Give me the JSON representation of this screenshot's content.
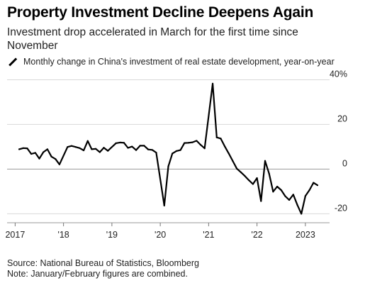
{
  "title": "Property Investment Decline Deepens Again",
  "subtitle": "Investment drop accelerated in March for the first time since November",
  "legend_label": "Monthly change in China's investment of real estate development, year-on-year",
  "footer": {
    "source": "Source: National Bureau of Statistics, Bloomberg",
    "note": "Note: January/February figures are combined."
  },
  "chart_data": {
    "type": "line",
    "title": "Property Investment Decline Deepens Again",
    "subtitle": "Investment drop accelerated in March for the first time since November",
    "series": [
      {
        "name": "Monthly change in China's investment of real estate development, year-on-year",
        "color": "#000000",
        "points": [
          {
            "x": "2017-02",
            "y": 8.9
          },
          {
            "x": "2017-03",
            "y": 9.4
          },
          {
            "x": "2017-04",
            "y": 9.3
          },
          {
            "x": "2017-05",
            "y": 6.8
          },
          {
            "x": "2017-06",
            "y": 7.3
          },
          {
            "x": "2017-07",
            "y": 4.7
          },
          {
            "x": "2017-08",
            "y": 7.6
          },
          {
            "x": "2017-09",
            "y": 8.9
          },
          {
            "x": "2017-10",
            "y": 5.6
          },
          {
            "x": "2017-11",
            "y": 4.5
          },
          {
            "x": "2017-12",
            "y": 2.1
          },
          {
            "x": "2018-02",
            "y": 9.9
          },
          {
            "x": "2018-03",
            "y": 10.4
          },
          {
            "x": "2018-04",
            "y": 9.9
          },
          {
            "x": "2018-05",
            "y": 9.4
          },
          {
            "x": "2018-06",
            "y": 8.4
          },
          {
            "x": "2018-07",
            "y": 12.6
          },
          {
            "x": "2018-08",
            "y": 8.9
          },
          {
            "x": "2018-09",
            "y": 9.1
          },
          {
            "x": "2018-10",
            "y": 7.6
          },
          {
            "x": "2018-11",
            "y": 9.6
          },
          {
            "x": "2018-12",
            "y": 8.2
          },
          {
            "x": "2019-02",
            "y": 11.6
          },
          {
            "x": "2019-03",
            "y": 11.9
          },
          {
            "x": "2019-04",
            "y": 11.8
          },
          {
            "x": "2019-05",
            "y": 9.5
          },
          {
            "x": "2019-06",
            "y": 10.1
          },
          {
            "x": "2019-07",
            "y": 8.5
          },
          {
            "x": "2019-08",
            "y": 10.5
          },
          {
            "x": "2019-09",
            "y": 10.5
          },
          {
            "x": "2019-10",
            "y": 8.8
          },
          {
            "x": "2019-11",
            "y": 8.6
          },
          {
            "x": "2019-12",
            "y": 7.4
          },
          {
            "x": "2020-02",
            "y": -16.3
          },
          {
            "x": "2020-03",
            "y": 1.2
          },
          {
            "x": "2020-04",
            "y": 7.0
          },
          {
            "x": "2020-05",
            "y": 8.1
          },
          {
            "x": "2020-06",
            "y": 8.5
          },
          {
            "x": "2020-07",
            "y": 11.7
          },
          {
            "x": "2020-08",
            "y": 11.8
          },
          {
            "x": "2020-09",
            "y": 12.0
          },
          {
            "x": "2020-10",
            "y": 12.7
          },
          {
            "x": "2020-11",
            "y": 10.9
          },
          {
            "x": "2020-12",
            "y": 9.3
          },
          {
            "x": "2021-02",
            "y": 38.3
          },
          {
            "x": "2021-03",
            "y": 14.2
          },
          {
            "x": "2021-04",
            "y": 13.7
          },
          {
            "x": "2021-05",
            "y": 10.2
          },
          {
            "x": "2021-06",
            "y": 7.0
          },
          {
            "x": "2021-07",
            "y": 3.6
          },
          {
            "x": "2021-08",
            "y": 0.2
          },
          {
            "x": "2021-09",
            "y": -1.4
          },
          {
            "x": "2021-10",
            "y": -3.1
          },
          {
            "x": "2021-11",
            "y": -5.0
          },
          {
            "x": "2021-12",
            "y": -6.7
          },
          {
            "x": "2022-01",
            "y": -4.0
          },
          {
            "x": "2022-02",
            "y": -14.3
          },
          {
            "x": "2022-03",
            "y": 3.7
          },
          {
            "x": "2022-04",
            "y": -2.0
          },
          {
            "x": "2022-05",
            "y": -10.1
          },
          {
            "x": "2022-06",
            "y": -7.8
          },
          {
            "x": "2022-07",
            "y": -9.4
          },
          {
            "x": "2022-08",
            "y": -12.1
          },
          {
            "x": "2022-09",
            "y": -13.8
          },
          {
            "x": "2022-10",
            "y": -11.4
          },
          {
            "x": "2022-11",
            "y": -16.0
          },
          {
            "x": "2022-12",
            "y": -20.0
          },
          {
            "x": "2023-01",
            "y": -12.0
          },
          {
            "x": "2023-02",
            "y": -9.4
          },
          {
            "x": "2023-03",
            "y": -6.1
          },
          {
            "x": "2023-04",
            "y": -7.2
          }
        ]
      }
    ],
    "x_ticks": [
      {
        "x": "2017-01",
        "label": "2017"
      },
      {
        "x": "2018-01",
        "label": "'18"
      },
      {
        "x": "2019-01",
        "label": "'19"
      },
      {
        "x": "2020-01",
        "label": "'20"
      },
      {
        "x": "2021-01",
        "label": "'21"
      },
      {
        "x": "2022-01",
        "label": "'22"
      },
      {
        "x": "2023-01",
        "label": "2023"
      }
    ],
    "y_ticks": [
      {
        "y": 40,
        "label": "40%"
      },
      {
        "y": 20,
        "label": "20"
      },
      {
        "y": 0,
        "label": "0"
      },
      {
        "y": -20,
        "label": "-20"
      }
    ],
    "xlim": [
      "2016-11",
      "2023-07"
    ],
    "ylim": [
      -24,
      43
    ],
    "y_axis_side": "right",
    "grid": "horizontal",
    "legend": "top-left"
  }
}
